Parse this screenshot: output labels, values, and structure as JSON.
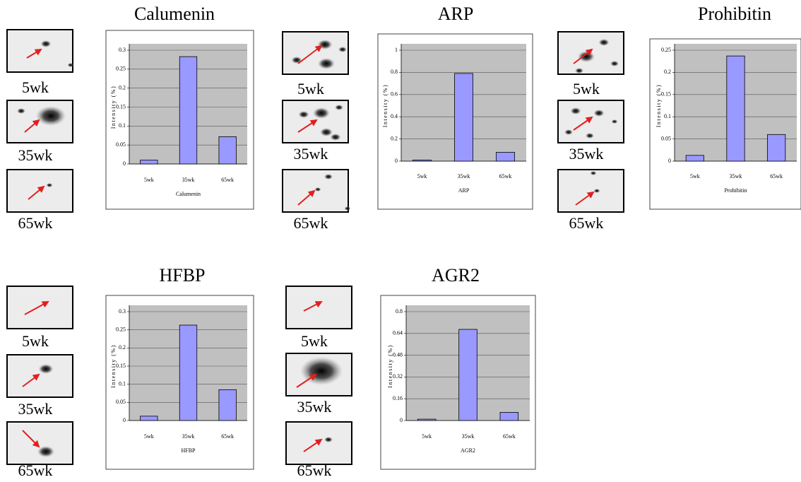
{
  "chart_data": [
    {
      "type": "bar",
      "title": "Calumenin",
      "xlabel": "Calumenin",
      "ylabel": "Intensity (%)",
      "gel_labels": [
        "5wk",
        "35wk",
        "65wk"
      ],
      "categories": [
        "5wk",
        "35wk",
        "65wk"
      ],
      "values": [
        0.01,
        0.283,
        0.072
      ],
      "color": "#9999ff",
      "ylim": [
        0,
        0.3
      ],
      "yticks": [
        0,
        0.05,
        0.1,
        0.15,
        0.2,
        0.25,
        0.3
      ],
      "grid": true
    },
    {
      "type": "bar",
      "title": "ARP",
      "xlabel": "ARP",
      "ylabel": "Intensity (%)",
      "gel_labels": [
        "5wk",
        "35wk",
        "65wk"
      ],
      "categories": [
        "5wk",
        "35wk",
        "65wk"
      ],
      "values": [
        0.01,
        0.79,
        0.08
      ],
      "color": "#9999ff",
      "ylim": [
        0,
        1
      ],
      "yticks": [
        0,
        0.2,
        0.4,
        0.6,
        0.8,
        1
      ],
      "grid": true
    },
    {
      "type": "bar",
      "title": "Prohibitin",
      "xlabel": "Prohibitin",
      "ylabel": "Intensity (%)",
      "gel_labels": [
        "5wk",
        "35wk",
        "65wk"
      ],
      "categories": [
        "5wk",
        "35wk",
        "65wk"
      ],
      "values": [
        0.013,
        0.237,
        0.06
      ],
      "color": "#9999ff",
      "ylim": [
        0,
        0.25
      ],
      "yticks": [
        0,
        0.05,
        0.1,
        0.15,
        0.2,
        0.25
      ],
      "grid": true
    },
    {
      "type": "bar",
      "title": "HFBP",
      "xlabel": "HFBP",
      "ylabel": "Intensity (%)",
      "gel_labels": [
        "5wk",
        "35wk",
        "65wk"
      ],
      "categories": [
        "5wk",
        "35wk",
        "65wk"
      ],
      "values": [
        0.012,
        0.263,
        0.085
      ],
      "color": "#9999ff",
      "ylim": [
        0,
        0.3
      ],
      "yticks": [
        0,
        0.05,
        0.1,
        0.15,
        0.2,
        0.25,
        0.3
      ],
      "grid": true
    },
    {
      "type": "bar",
      "title": "AGR2",
      "xlabel": "AGR2",
      "ylabel": "Intensity (%)",
      "gel_labels": [
        "5wk",
        "35wk",
        "65wk"
      ],
      "categories": [
        "5wk",
        "35wk",
        "65wk"
      ],
      "values": [
        0.01,
        0.67,
        0.06
      ],
      "color": "#9999ff",
      "ylim": [
        0,
        0.8
      ],
      "yticks": [
        0,
        0.16,
        0.32,
        0.48,
        0.64,
        0.8
      ],
      "grid": true
    }
  ]
}
